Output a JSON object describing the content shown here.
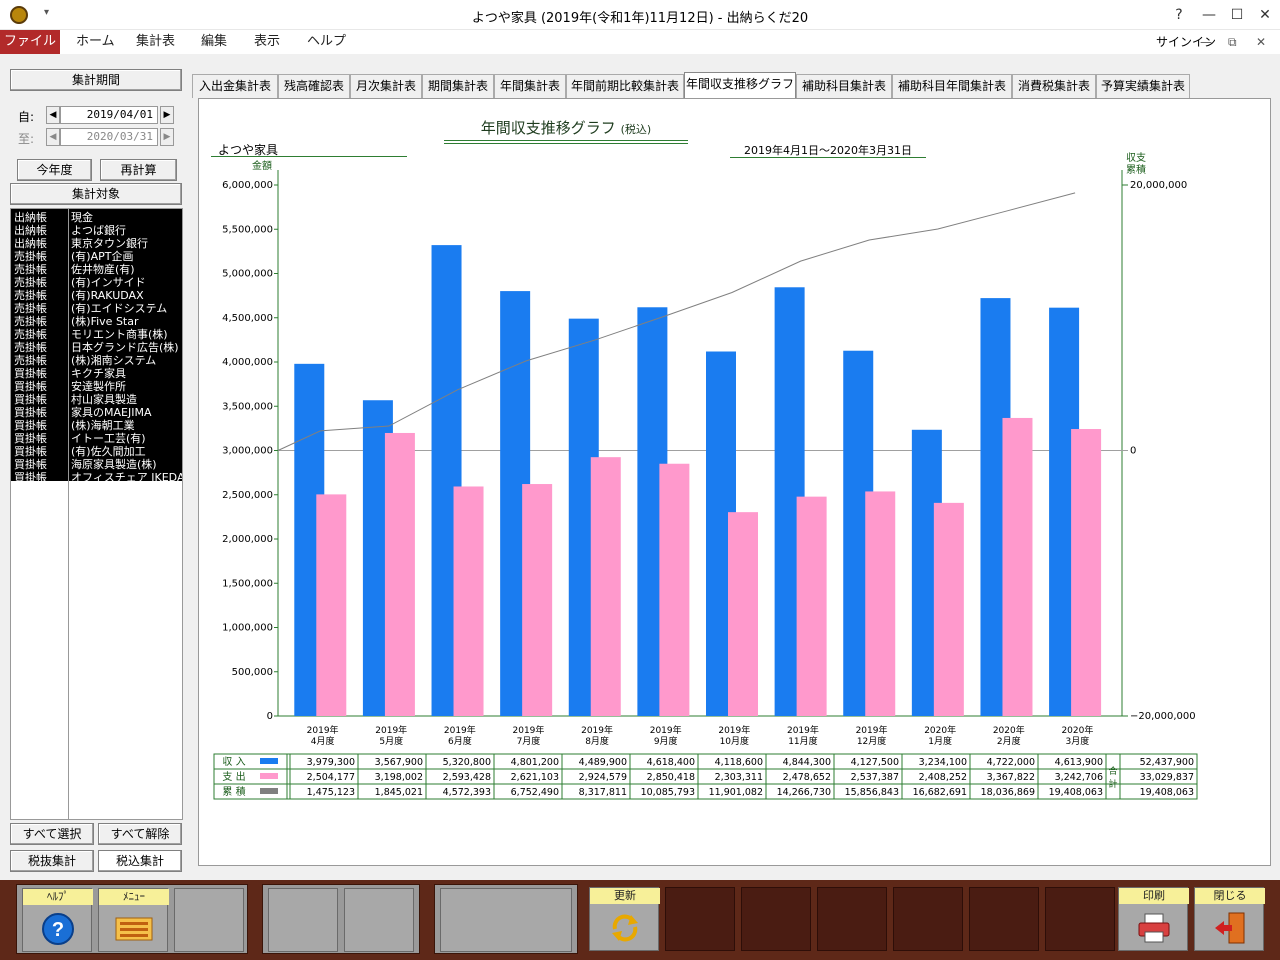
{
  "window": {
    "title": "よつや家具 (2019年(令和1年)11月12日) - 出納らくだ20",
    "controls": [
      "?",
      "—",
      "☐",
      "✕"
    ]
  },
  "menu": {
    "file": "ファイル",
    "items": [
      "ホーム",
      "集計表",
      "編集",
      "表示",
      "ヘルプ"
    ],
    "signin": "サインイン"
  },
  "left": {
    "period_button": "集計期間",
    "from_label": "自:",
    "from_date": "2019/04/01",
    "to_label": "至:",
    "to_date": "2020/03/31",
    "this_year_button": "今年度",
    "recalc_button": "再計算",
    "target_button": "集計対象",
    "items": [
      [
        "出納帳",
        "現金"
      ],
      [
        "出納帳",
        "よつば銀行"
      ],
      [
        "出納帳",
        "東京タウン銀行"
      ],
      [
        "売掛帳",
        "(有)APT企画"
      ],
      [
        "売掛帳",
        "佐井物産(有)"
      ],
      [
        "売掛帳",
        "(有)インサイド"
      ],
      [
        "売掛帳",
        "(有)RAKUDAX"
      ],
      [
        "売掛帳",
        "(有)エイドシステム"
      ],
      [
        "売掛帳",
        "(株)Five Star"
      ],
      [
        "売掛帳",
        "モリエント商事(株)"
      ],
      [
        "売掛帳",
        "日本グランド広告(株)"
      ],
      [
        "売掛帳",
        "(株)湘南システム"
      ],
      [
        "買掛帳",
        "キクチ家具"
      ],
      [
        "買掛帳",
        "安達製作所"
      ],
      [
        "買掛帳",
        "村山家具製造"
      ],
      [
        "買掛帳",
        "家具のMAEJIMA"
      ],
      [
        "買掛帳",
        "(株)海朝工業"
      ],
      [
        "買掛帳",
        "イトー工芸(有)"
      ],
      [
        "買掛帳",
        "(有)佐久間加工"
      ],
      [
        "買掛帳",
        "海原家具製造(株)"
      ],
      [
        "買掛帳",
        "オフィスチェア IKEDA"
      ]
    ],
    "select_all": "すべて選択",
    "deselect_all": "すべて解除",
    "tax_excl": "税抜集計",
    "tax_incl": "税込集計"
  },
  "tabs": [
    "入出金集計表",
    "残高確認表",
    "月次集計表",
    "期間集計表",
    "年間集計表",
    "年間前期比較集計表",
    "年間収支推移グラフ",
    "補助科目集計表",
    "補助科目年間集計表",
    "消費税集計表",
    "予算実績集計表"
  ],
  "active_tab": 6,
  "chart_data": {
    "type": "bar",
    "title": "年間収支推移グラフ",
    "title_suffix": "(税込)",
    "company": "よつや家具",
    "period": "2019年4月1日～2020年3月31日",
    "ylabel_left": "金額",
    "ylabel_right": [
      "収支",
      "累積"
    ],
    "ylim_left": [
      0,
      6000000
    ],
    "ylim_right": [
      -20000000,
      20000000
    ],
    "yticks_left": [
      "6,000,000",
      "5,500,000",
      "5,000,000",
      "4,500,000",
      "4,000,000",
      "3,500,000",
      "3,000,000",
      "2,500,000",
      "2,000,000",
      "1,500,000",
      "1,000,000",
      "500,000",
      "0"
    ],
    "yticks_right": [
      "20,000,000",
      "0",
      "−20,000,000"
    ],
    "categories": [
      [
        "2019年",
        "4月度"
      ],
      [
        "2019年",
        "5月度"
      ],
      [
        "2019年",
        "6月度"
      ],
      [
        "2019年",
        "7月度"
      ],
      [
        "2019年",
        "8月度"
      ],
      [
        "2019年",
        "9月度"
      ],
      [
        "2019年",
        "10月度"
      ],
      [
        "2019年",
        "11月度"
      ],
      [
        "2019年",
        "12月度"
      ],
      [
        "2020年",
        "1月度"
      ],
      [
        "2020年",
        "2月度"
      ],
      [
        "2020年",
        "3月度"
      ]
    ],
    "series": [
      {
        "name": "収入",
        "color": "#1a7cf0",
        "values": [
          3979300,
          3567900,
          5320800,
          4801200,
          4489900,
          4618400,
          4118600,
          4844300,
          4127500,
          3234100,
          4722000,
          4613900
        ]
      },
      {
        "name": "支出",
        "color": "#ff99cc",
        "values": [
          2504177,
          3198002,
          2593428,
          2621103,
          2924579,
          2850418,
          2303311,
          2478652,
          2537387,
          2408252,
          3367822,
          3242706
        ]
      },
      {
        "name": "累積",
        "color": "#808080",
        "axis": "right",
        "values": [
          1475123,
          1845021,
          4572393,
          6752490,
          8317811,
          10085793,
          11901082,
          14266730,
          15856843,
          16682691,
          18036869,
          19408063
        ]
      }
    ],
    "table": {
      "rows": [
        {
          "label": "収 入",
          "cells": [
            "3,979,300",
            "3,567,900",
            "5,320,800",
            "4,801,200",
            "4,489,900",
            "4,618,400",
            "4,118,600",
            "4,844,300",
            "4,127,500",
            "3,234,100",
            "4,722,000",
            "4,613,900"
          ],
          "total": "52,437,900"
        },
        {
          "label": "支 出",
          "cells": [
            "2,504,177",
            "3,198,002",
            "2,593,428",
            "2,621,103",
            "2,924,579",
            "2,850,418",
            "2,303,311",
            "2,478,652",
            "2,537,387",
            "2,408,252",
            "3,367,822",
            "3,242,706"
          ],
          "total": "33,029,837"
        },
        {
          "label": "累 積",
          "cells": [
            "1,475,123",
            "1,845,021",
            "4,572,393",
            "6,752,490",
            "8,317,811",
            "10,085,793",
            "11,901,082",
            "14,266,730",
            "15,856,843",
            "16,682,691",
            "18,036,869",
            "19,408,063"
          ],
          "total": "19,408,063"
        }
      ],
      "total_label": [
        "合",
        "計"
      ]
    }
  },
  "toolbar": {
    "help": "ﾍﾙﾌﾟ",
    "menu": "ﾒﾆｭｰ",
    "refresh": "更新",
    "print": "印刷",
    "close": "閉じる"
  }
}
